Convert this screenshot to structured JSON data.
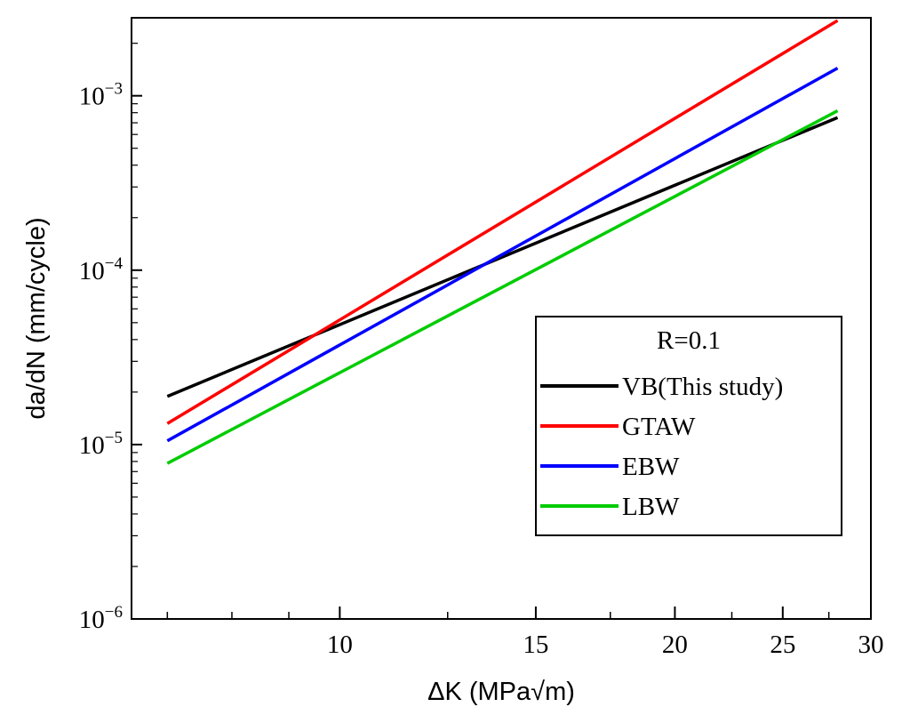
{
  "chart_data": {
    "type": "line",
    "xscale": "log",
    "yscale": "log",
    "xlabel": "ΔK (MPa√m)",
    "ylabel": "da/dN (mm/cycle)",
    "xlim": [
      6.5,
      30
    ],
    "ylim": [
      1e-06,
      0.0028
    ],
    "xticks": {
      "major": [
        10,
        15,
        20,
        25,
        30
      ],
      "minor": [
        7,
        8,
        9,
        12.5,
        17.5,
        22.5,
        27.5
      ]
    },
    "yticks": [
      {
        "value": 0.001,
        "base": "10",
        "exp": "−3"
      },
      {
        "value": 0.0001,
        "base": "10",
        "exp": "−4"
      },
      {
        "value": 1e-05,
        "base": "10",
        "exp": "−5"
      },
      {
        "value": 1e-06,
        "base": "10",
        "exp": "−6"
      }
    ],
    "legend": {
      "title": "R=0.1",
      "position": "right"
    },
    "series": [
      {
        "name": "VB(This study)",
        "color": "#000000",
        "x": [
          7.0,
          28.0
        ],
        "y": [
          1.89e-05,
          0.00075
        ]
      },
      {
        "name": "GTAW",
        "color": "#ff0000",
        "x": [
          7.0,
          28.0
        ],
        "y": [
          1.32e-05,
          0.0027
        ]
      },
      {
        "name": "EBW",
        "color": "#0000ff",
        "x": [
          7.0,
          28.0
        ],
        "y": [
          1.05e-05,
          0.00144
        ]
      },
      {
        "name": "LBW",
        "color": "#00cc00",
        "x": [
          7.0,
          28.0
        ],
        "y": [
          7.8e-06,
          0.00082
        ]
      }
    ]
  }
}
